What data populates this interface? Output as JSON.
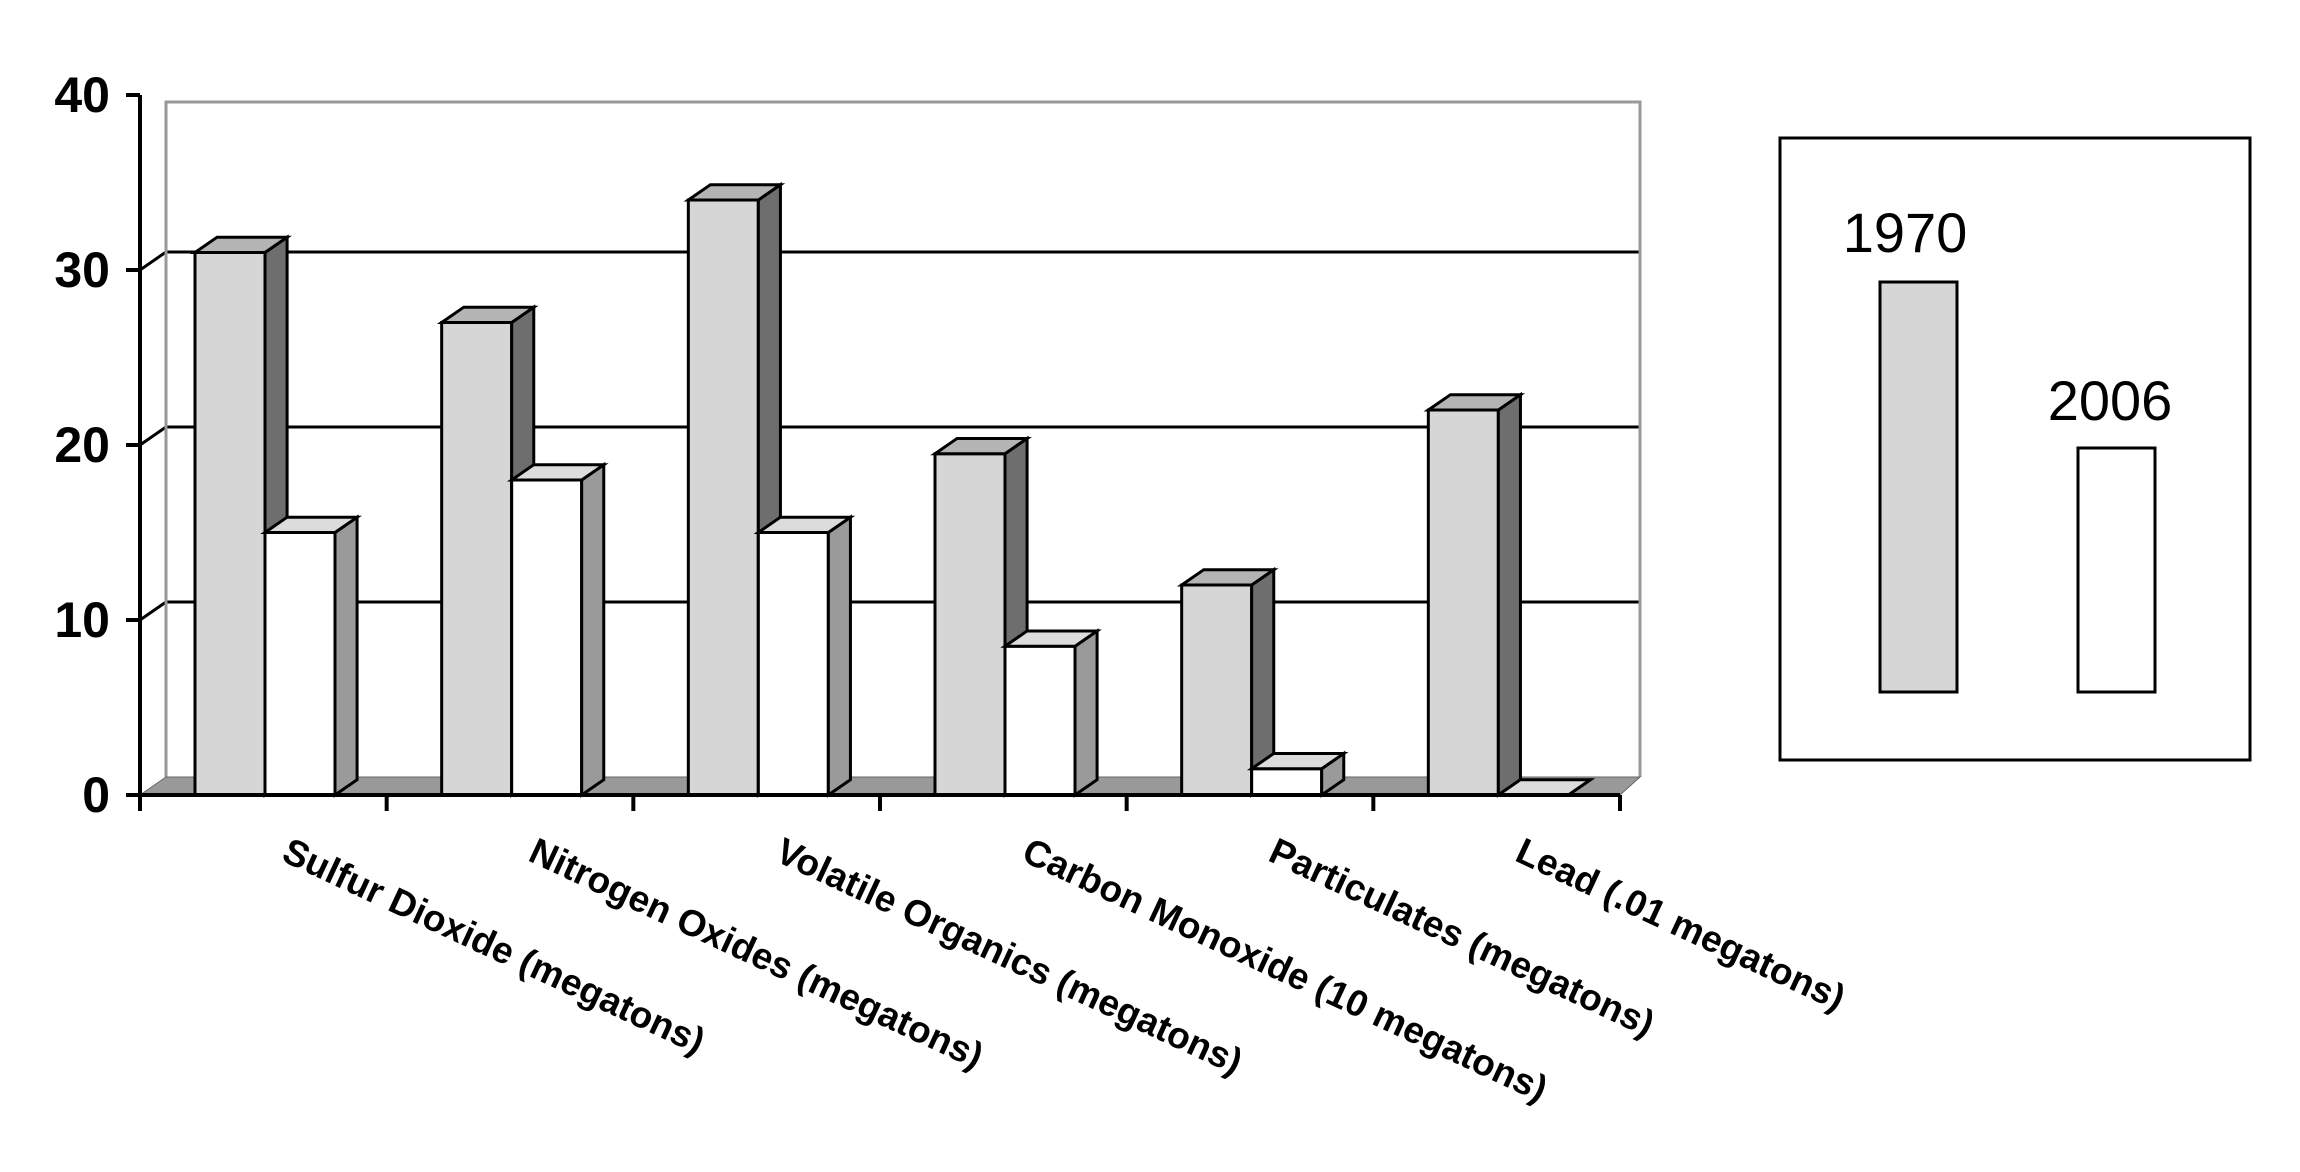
{
  "chart_data": {
    "type": "bar",
    "categories": [
      "Sulfur Dioxide (megatons)",
      "Nitrogen Oxides (megatons)",
      "Volatile Organics (megatons)",
      "Carbon Monoxide (10 megatons)",
      "Particulates (megatons)",
      "Lead (.01 megatons)"
    ],
    "series": [
      {
        "name": "1970",
        "values": [
          31,
          27,
          34,
          19.5,
          12,
          22
        ],
        "color": "#d6d6d6",
        "side_color": "#6e6e6e",
        "top_color": "#b4b4b4"
      },
      {
        "name": "2006",
        "values": [
          15,
          18,
          15,
          8.5,
          1.5,
          0
        ],
        "color": "#ffffff",
        "side_color": "#9a9a9a",
        "top_color": "#dcdcdc"
      }
    ],
    "ylim": [
      0,
      40
    ],
    "yticks": [
      0,
      10,
      20,
      30,
      40
    ],
    "ytick_labels": [
      "0",
      "10",
      "20",
      "30",
      "40"
    ],
    "grid": true,
    "three_d": true,
    "legend": {
      "placement": "right",
      "labels": [
        "1970",
        "2006"
      ]
    }
  }
}
